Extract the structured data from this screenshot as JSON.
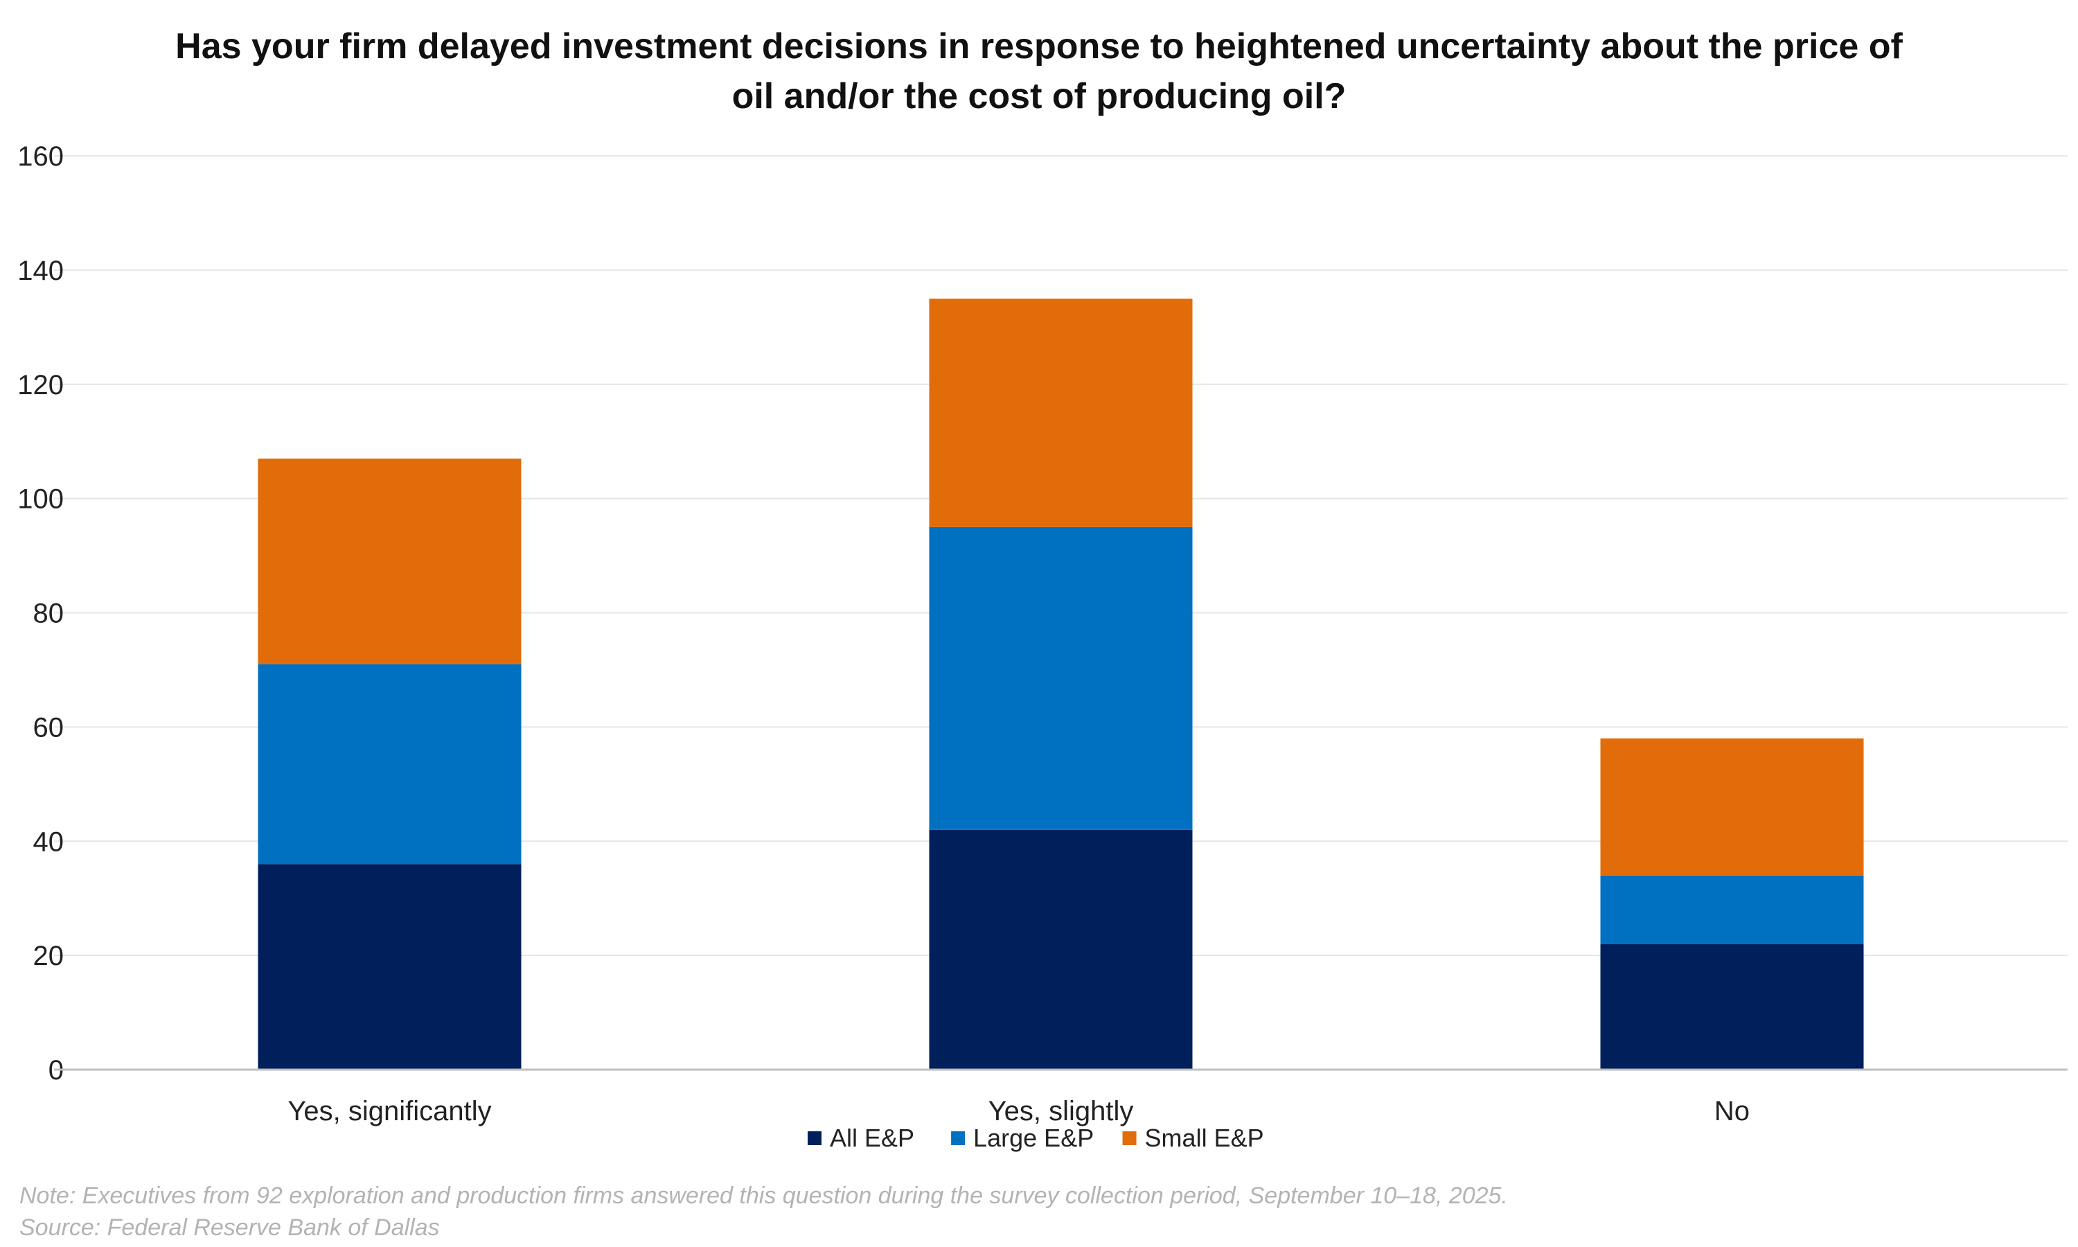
{
  "chart_data": {
    "type": "bar",
    "stacked": true,
    "title_lines": [
      "Has your firm delayed investment decisions in response to heightened uncertainty about the price of",
      "oil and/or the cost of producing oil?"
    ],
    "categories": [
      "Yes, significantly",
      "Yes, slightly",
      "No"
    ],
    "series": [
      {
        "name": "All E&P",
        "values": [
          36,
          42,
          22
        ],
        "color": "#001f5b"
      },
      {
        "name": "Large E&P",
        "values": [
          35,
          53,
          12
        ],
        "color": "#0070c0"
      },
      {
        "name": "Small E&P",
        "values": [
          36,
          40,
          24
        ],
        "color": "#e36c0a"
      }
    ],
    "ylim": [
      0,
      160
    ],
    "yticks": [
      0,
      20,
      40,
      60,
      80,
      100,
      120,
      140,
      160
    ],
    "grid": true,
    "legend_position": "bottom-center",
    "xlabel": "",
    "ylabel": ""
  },
  "footnotes": {
    "note": "Note: Executives from 92 exploration and production firms answered this question during the survey collection period, September 10–18, 2025.",
    "source": "Source: Federal Reserve Bank of Dallas"
  }
}
